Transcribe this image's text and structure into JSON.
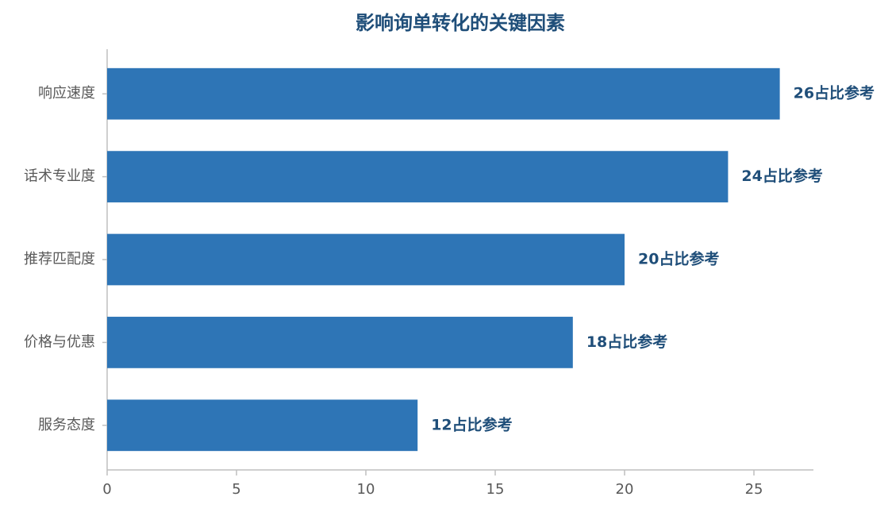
{
  "chart_data": {
    "type": "barh",
    "title": "影响询单转化的关键因素",
    "categories": [
      "响应速度",
      "话术专业度",
      "推荐匹配度",
      "价格与优惠",
      "服务态度"
    ],
    "values": [
      26,
      24,
      20,
      18,
      12
    ],
    "value_labels": [
      "26占比参考",
      "24占比参考",
      "20占比参考",
      "18占比参考",
      "12占比参考"
    ],
    "color": "#2e75b6",
    "xlim": [
      0,
      27.3
    ],
    "xticks": [
      0,
      5,
      10,
      15,
      20,
      25
    ],
    "grid": false
  }
}
